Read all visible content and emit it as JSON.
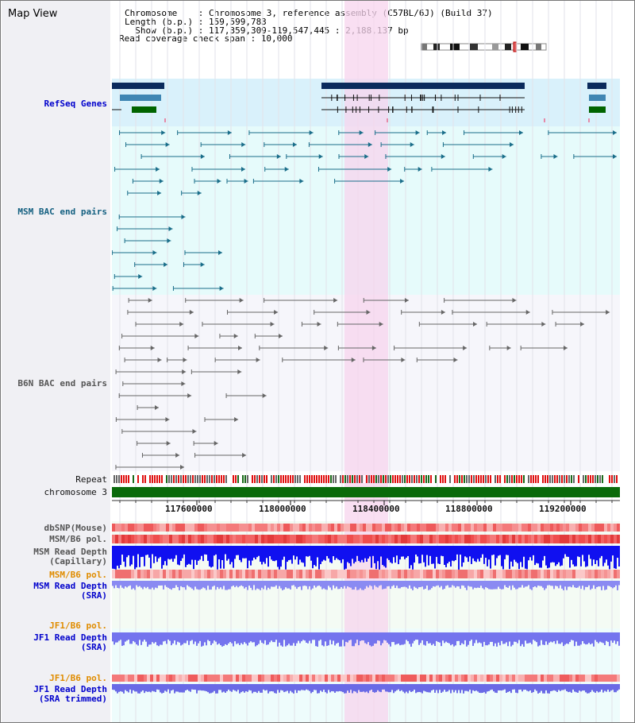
{
  "title": "Map View",
  "header": {
    "line1": "Chromosome    : Chromosome 3, reference assembly (C57BL/6J) (Build 37)",
    "line2": "Length (b.p.) : 159,599,783",
    "line3": "  Show (b.p.) : 117,359,309-119,547,445 : 2,188,137 bp",
    "line4": "Read coverage check span : 10,000"
  },
  "tracks": {
    "refseq": "RefSeq Genes",
    "msm_bac": "MSM BAC end pairs",
    "b6n_bac": "B6N BAC end pairs",
    "repeat": "Repeat",
    "chromosome": "chromosome 3",
    "dbsnp": "dbSNP(Mouse)",
    "msm_b6_pol": "MSM/B6 pol.",
    "msm_rd_cap_1": "MSM Read Depth",
    "msm_rd_cap_2": "(Capillary)",
    "msm_b6_pol2": "MSM/B6 pol.",
    "msm_rd_sra_1": "MSM Read Depth",
    "msm_rd_sra_2": "(SRA)",
    "jf1_b6_pol": "JF1/B6 pol.",
    "jf1_rd_1": "JF1 Read Depth",
    "jf1_rd_2": "(SRA)",
    "jf1_b6_pol2": "JF1/B6 pol.",
    "jf1_rdt_1": "JF1 Read Depth",
    "jf1_rdt_2": "(SRA trimmed)"
  },
  "axis": {
    "ticks": [
      "117600000",
      "118000000",
      "118400000",
      "118800000",
      "119200000"
    ]
  },
  "colors": {
    "refseq_dark": "#0b2a5c",
    "refseq_mid": "#3f86b3",
    "refseq_green": "#006400",
    "msm_line": "#1a6e8a",
    "b6n_line": "#666666",
    "repeat_red": "#e01010",
    "chrom_green": "#0a6a0a",
    "highlight": "#f7d4ee"
  }
}
